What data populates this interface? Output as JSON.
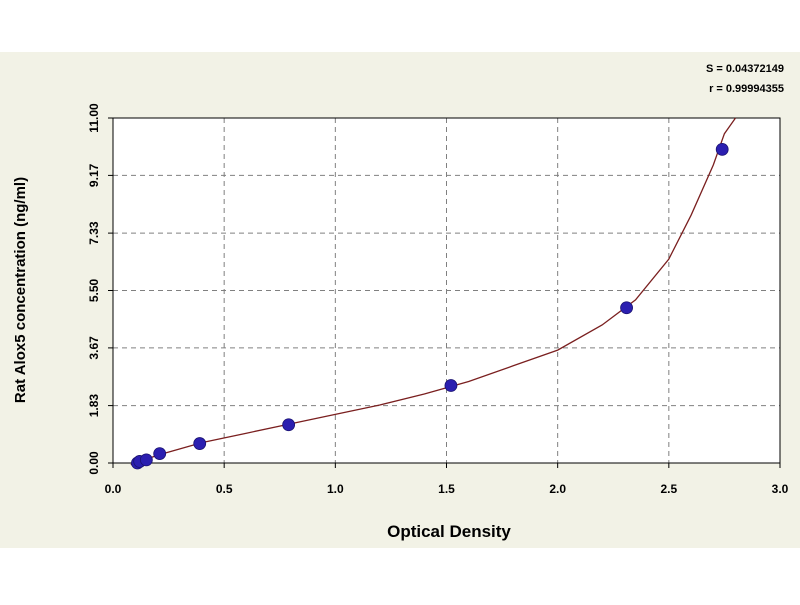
{
  "chart_data": {
    "type": "scatter",
    "title": "",
    "xlabel": "Optical Density",
    "ylabel": "Rat Alox5 concentration (ng/ml)",
    "xlim": [
      0.0,
      3.0
    ],
    "ylim": [
      0.0,
      11.0
    ],
    "x_ticks": [
      "0.0",
      "0.5",
      "1.0",
      "1.5",
      "2.0",
      "2.5",
      "3.0"
    ],
    "y_ticks": [
      "0.00",
      "1.83",
      "3.67",
      "5.50",
      "7.33",
      "9.17",
      "11.00"
    ],
    "grid": true,
    "stats": {
      "s_label": "S = 0.04372149",
      "r_label": "r = 0.99994355"
    },
    "points": [
      {
        "x": 0.11,
        "y": 0.0
      },
      {
        "x": 0.12,
        "y": 0.05
      },
      {
        "x": 0.15,
        "y": 0.1
      },
      {
        "x": 0.21,
        "y": 0.3
      },
      {
        "x": 0.39,
        "y": 0.62
      },
      {
        "x": 0.79,
        "y": 1.22
      },
      {
        "x": 1.52,
        "y": 2.47
      },
      {
        "x": 2.31,
        "y": 4.95
      },
      {
        "x": 2.74,
        "y": 10.0
      }
    ],
    "fit_curve": {
      "x": [
        0.08,
        0.2,
        0.4,
        0.6,
        0.8,
        1.0,
        1.2,
        1.4,
        1.6,
        1.8,
        2.0,
        2.2,
        2.35,
        2.5,
        2.6,
        2.7,
        2.75,
        2.8
      ],
      "y": [
        -0.05,
        0.25,
        0.65,
        0.95,
        1.25,
        1.55,
        1.85,
        2.2,
        2.6,
        3.1,
        3.6,
        4.4,
        5.2,
        6.5,
        7.9,
        9.5,
        10.5,
        11.0
      ]
    },
    "colors": {
      "background": "#f2f2e6",
      "plot_bg": "#ffffff",
      "grid": "#808080",
      "axis": "#000000",
      "point": "#2b1fb0",
      "curve": "#7a1f1f"
    }
  }
}
